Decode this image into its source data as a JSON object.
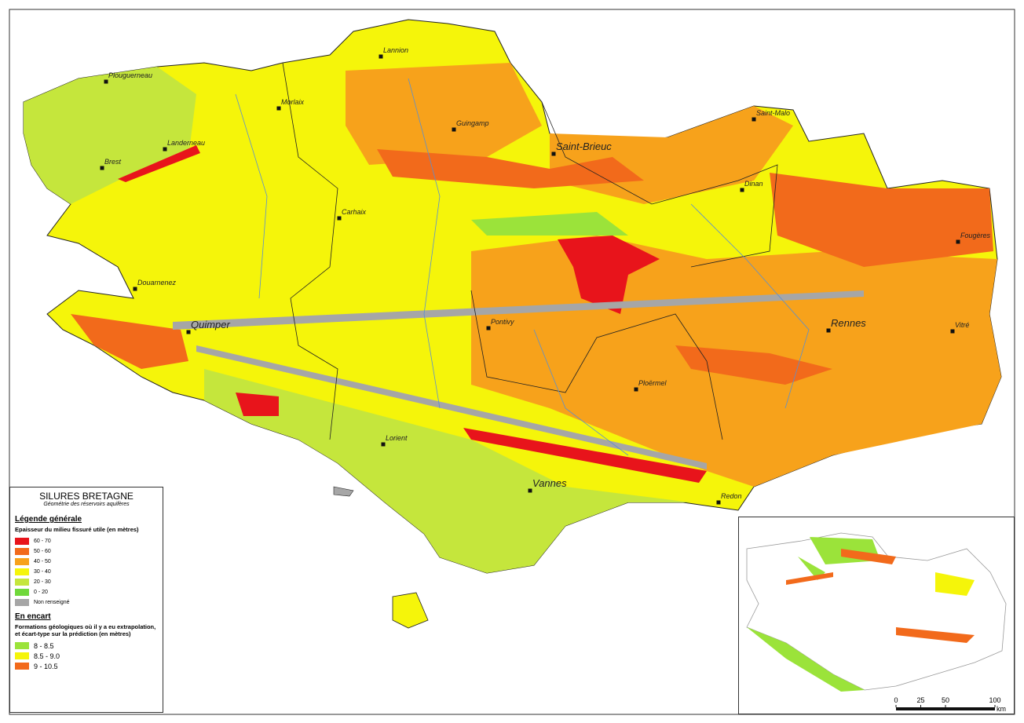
{
  "title": "SILURES BRETAGNE",
  "subtitle": "Géométrie des réservoirs aquifères",
  "legend": {
    "heading": "Légende générale",
    "subheading": "Epaisseur du milieu fissuré utile (en mètres)",
    "items": [
      {
        "label": "60 - 70",
        "color": "#e8141b"
      },
      {
        "label": "50 - 60",
        "color": "#f26a1b"
      },
      {
        "label": "40 - 50",
        "color": "#f7a21b"
      },
      {
        "label": "30 - 40",
        "color": "#f5f50a"
      },
      {
        "label": "20 - 30",
        "color": "#c5e63c"
      },
      {
        "label": "0 - 20",
        "color": "#70d83a"
      },
      {
        "label": "Non renseigné",
        "color": "#a6a6a6"
      }
    ]
  },
  "inset_legend": {
    "heading": "En encart",
    "subheading": "Formations géologiques où il y a eu extrapolation, et écart-type sur la prédiction (en mètres)",
    "items": [
      {
        "label": "8 - 8.5",
        "color": "#9be33a"
      },
      {
        "label": "8.5 - 9.0",
        "color": "#f5f50a"
      },
      {
        "label": "9 - 10.5",
        "color": "#f26a1b"
      }
    ]
  },
  "cities": [
    {
      "label": "Lannion"
    },
    {
      "label": "Plouguerneau"
    },
    {
      "label": "Morlaix"
    },
    {
      "label": "Landerneau"
    },
    {
      "label": "Brest"
    },
    {
      "label": "Guingamp"
    },
    {
      "label": "Saint-Brieuc"
    },
    {
      "label": "Saint-Malo"
    },
    {
      "label": "Dinan"
    },
    {
      "label": "Carhaix"
    },
    {
      "label": "Douarnenez"
    },
    {
      "label": "Quimper"
    },
    {
      "label": "Pontivy"
    },
    {
      "label": "Fougères"
    },
    {
      "label": "Rennes"
    },
    {
      "label": "Vitré"
    },
    {
      "label": "Ploërmel"
    },
    {
      "label": "Lorient"
    },
    {
      "label": "Vannes"
    },
    {
      "label": "Redon"
    }
  ],
  "scale": {
    "ticks": [
      0,
      25,
      50,
      100
    ],
    "unit": "km"
  }
}
